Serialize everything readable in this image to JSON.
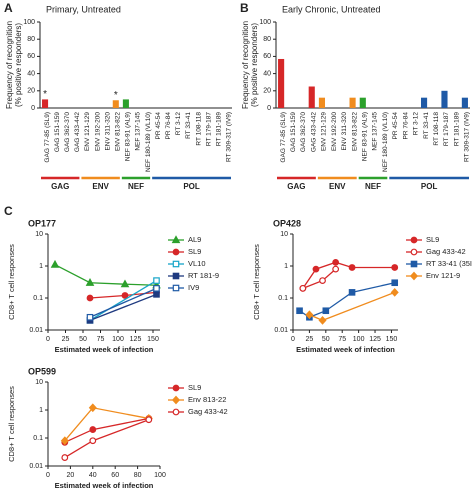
{
  "panel_labels": [
    "A",
    "B",
    "C"
  ],
  "chart_data": [
    {
      "type": "bar",
      "title": "Primary, Untreated",
      "y_label": [
        "Frequency of recognition",
        "(% positive responders)"
      ],
      "categories": [
        "GAG 77-85 (SL9)",
        "GAG 151-159",
        "GAG 362-370",
        "GAG 433-442",
        "ENV 121-129",
        "ENV 192-200",
        "ENV 311-320",
        "ENV 813-822",
        "NEF 83-91 (AL9)",
        "NEF 137-145",
        "NEF 180-189 (VL10)",
        "PR 45-54",
        "PR 76-84",
        "RT 3-12",
        "RT 33-41",
        "RT 108-118",
        "RT 179-187",
        "RT 181-189",
        "RT 309-317 (IV9)"
      ],
      "series": [
        {
          "name": "GAG",
          "color": "#d62728",
          "values": [
            10,
            0,
            0,
            0,
            null,
            null,
            null,
            null,
            null,
            null,
            null,
            null,
            null,
            null,
            null,
            null,
            null,
            null,
            null
          ]
        },
        {
          "name": "ENV",
          "color": "#f08c1e",
          "values": [
            null,
            null,
            null,
            null,
            0,
            0,
            0,
            9,
            null,
            null,
            null,
            null,
            null,
            null,
            null,
            null,
            null,
            null,
            null
          ]
        },
        {
          "name": "NEF",
          "color": "#2ca02c",
          "values": [
            null,
            null,
            null,
            null,
            null,
            null,
            null,
            null,
            10,
            0,
            0,
            null,
            null,
            null,
            null,
            null,
            null,
            null,
            null
          ]
        },
        {
          "name": "POL",
          "color": "#1f5aa6",
          "values": [
            null,
            null,
            null,
            null,
            null,
            null,
            null,
            null,
            null,
            null,
            null,
            0,
            0,
            0,
            0,
            0,
            0,
            0,
            0
          ]
        }
      ],
      "annotations": [
        {
          "text": "*",
          "category": "GAG 77-85 (SL9)"
        },
        {
          "text": "*",
          "category": "ENV 813-822"
        }
      ],
      "ylim": [
        0,
        100
      ],
      "yticks": [
        0,
        20,
        40,
        60,
        80,
        100
      ]
    },
    {
      "type": "bar",
      "title": "Early Chronic, Untreated",
      "y_label": [
        "Frequency of recognition",
        "(% positive responders)"
      ],
      "categories": [
        "GAG 77-85 (SL9)",
        "GAG 151-159",
        "GAG 362-370",
        "GAG 433-442",
        "ENV 121-129",
        "ENV 192-200",
        "ENV 311-320",
        "ENV 813-822",
        "NEF 83-91 (AL9)",
        "NEF 137-145",
        "NEF 180-189 (VL10)",
        "PR 45-54",
        "PR 76-84",
        "RT 3-12",
        "RT 33-41",
        "RT 108-118",
        "RT 179-187",
        "RT 181-189",
        "RT 309-317 (IV9)"
      ],
      "series": [
        {
          "name": "GAG",
          "color": "#d62728",
          "values": [
            57,
            0,
            0,
            25,
            null,
            null,
            null,
            null,
            null,
            null,
            null,
            null,
            null,
            null,
            null,
            null,
            null,
            null,
            null
          ]
        },
        {
          "name": "ENV",
          "color": "#f08c1e",
          "values": [
            null,
            null,
            null,
            null,
            12,
            0,
            0,
            12,
            null,
            null,
            null,
            null,
            null,
            null,
            null,
            null,
            null,
            null,
            null
          ]
        },
        {
          "name": "NEF",
          "color": "#2ca02c",
          "values": [
            null,
            null,
            null,
            null,
            null,
            null,
            null,
            null,
            12,
            0,
            0,
            null,
            null,
            null,
            null,
            null,
            null,
            null,
            null
          ]
        },
        {
          "name": "POL",
          "color": "#1f5aa6",
          "values": [
            null,
            null,
            null,
            null,
            null,
            null,
            null,
            null,
            null,
            null,
            null,
            0,
            0,
            0,
            12,
            0,
            20,
            0,
            12
          ]
        }
      ],
      "ylim": [
        0,
        100
      ],
      "yticks": [
        0,
        20,
        40,
        60,
        80,
        100
      ]
    },
    {
      "type": "line",
      "title": "OP177",
      "x_label": "Estimated week of infection",
      "y_label": "CD8+ T cell responses",
      "log_y": true,
      "xlim": [
        0,
        160
      ],
      "xticks": [
        0,
        25,
        50,
        75,
        100,
        125,
        150
      ],
      "ylim": [
        0.01,
        10
      ],
      "yticks": [
        0.01,
        0.1,
        1,
        10
      ],
      "series": [
        {
          "name": "AL9",
          "color": "#2ca02c",
          "marker": "triangle",
          "open": false,
          "x": [
            10,
            60,
            110,
            155
          ],
          "values": [
            1.1,
            0.3,
            0.27,
            0.25
          ]
        },
        {
          "name": "SL9",
          "color": "#d62728",
          "marker": "circle",
          "open": false,
          "x": [
            60,
            110,
            155
          ],
          "values": [
            0.1,
            0.12,
            0.15
          ]
        },
        {
          "name": "VL10",
          "color": "#17a5c8",
          "marker": "square",
          "open": true,
          "x": [
            60,
            155
          ],
          "values": [
            0.02,
            0.35
          ]
        },
        {
          "name": "RT 181-9",
          "color": "#1f3a80",
          "marker": "square",
          "open": false,
          "x": [
            60,
            155
          ],
          "values": [
            0.02,
            0.13
          ]
        },
        {
          "name": "IV9",
          "color": "#1f5aa6",
          "marker": "square",
          "open": true,
          "x": [
            60,
            155
          ],
          "values": [
            0.025,
            0.2
          ]
        }
      ]
    },
    {
      "type": "line",
      "title": "OP428",
      "x_label": "Estimated week of infection",
      "y_label": "CD8+ T cell responses",
      "log_y": true,
      "xlim": [
        0,
        160
      ],
      "xticks": [
        0,
        25,
        50,
        75,
        100,
        125,
        150
      ],
      "ylim": [
        0.01,
        10
      ],
      "yticks": [
        0.01,
        0.1,
        1,
        10
      ],
      "series": [
        {
          "name": "SL9",
          "color": "#d62728",
          "marker": "circle",
          "open": false,
          "x": [
            15,
            35,
            65,
            90,
            155
          ],
          "values": [
            0.2,
            0.8,
            1.3,
            0.9,
            0.9
          ]
        },
        {
          "name": "Gag 433-42",
          "color": "#d62728",
          "marker": "circle",
          "open": true,
          "x": [
            15,
            45,
            65
          ],
          "values": [
            0.2,
            0.35,
            0.8
          ]
        },
        {
          "name": "RT 33-41 (35I",
          "color": "#1f5aa6",
          "marker": "square",
          "open": false,
          "x": [
            10,
            25,
            50,
            90,
            155
          ],
          "values": [
            0.04,
            0.025,
            0.04,
            0.15,
            0.3
          ]
        },
        {
          "name": "Env 121-9",
          "color": "#f08c1e",
          "marker": "diamond",
          "open": false,
          "x": [
            25,
            45,
            155
          ],
          "values": [
            0.03,
            0.02,
            0.15
          ]
        }
      ]
    },
    {
      "type": "line",
      "title": "OP599",
      "x_label": "Estimated week of infection",
      "y_label": "CD8+ T cell responses",
      "log_y": true,
      "xlim": [
        0,
        100
      ],
      "xticks": [
        0,
        20,
        40,
        60,
        80,
        100
      ],
      "ylim": [
        0.01,
        10
      ],
      "yticks": [
        0.01,
        0.1,
        1,
        10
      ],
      "series": [
        {
          "name": "SL9",
          "color": "#d62728",
          "marker": "circle",
          "open": false,
          "x": [
            15,
            40,
            90
          ],
          "values": [
            0.07,
            0.2,
            0.5
          ]
        },
        {
          "name": "Env 813-22",
          "color": "#f08c1e",
          "marker": "diamond",
          "open": false,
          "x": [
            15,
            40,
            90
          ],
          "values": [
            0.08,
            1.2,
            0.5
          ]
        },
        {
          "name": "Gag 433-42",
          "color": "#d62728",
          "marker": "circle",
          "open": true,
          "x": [
            15,
            40,
            90
          ],
          "values": [
            0.02,
            0.08,
            0.45
          ]
        }
      ]
    }
  ]
}
